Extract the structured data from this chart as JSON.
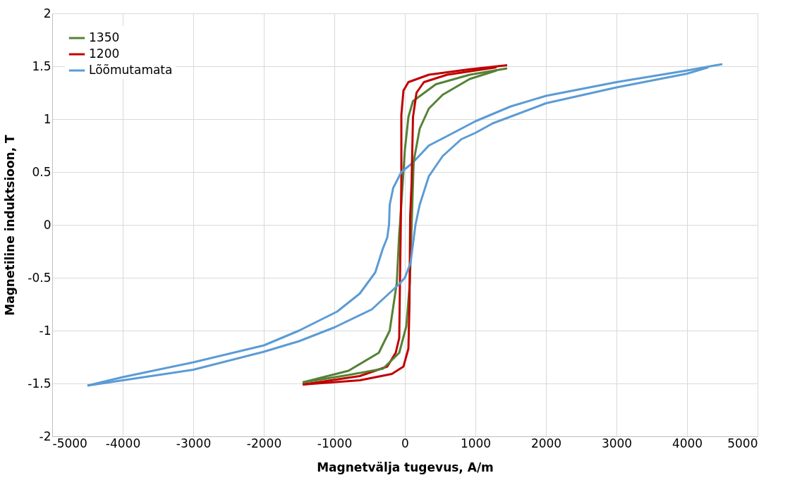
{
  "chart_data": {
    "type": "line",
    "xlabel": "Magnetvälja tugevus, A/m",
    "ylabel": "Magnetiline induktsioon, T",
    "xlim": [
      -5000,
      5000
    ],
    "xticks": [
      -5000,
      -4000,
      -3000,
      -2000,
      -1000,
      0,
      1000,
      2000,
      3000,
      4000,
      5000
    ],
    "ylim": [
      -2,
      2
    ],
    "yticks": [
      -2,
      -1.5,
      -1,
      -0.5,
      0,
      0.5,
      1,
      1.5,
      2
    ],
    "grid": true,
    "legend": "top left",
    "marker": "none",
    "line_style": "solid",
    "series": [
      {
        "name": "1350",
        "color": "#548235",
        "x": [
          1450,
          920,
          440,
          115,
          50,
          0,
          -30,
          -70,
          -80,
          -115,
          -215,
          -370,
          -800,
          -1450
        ],
        "values": [
          1.48,
          1.42,
          1.33,
          1.17,
          1.02,
          0.71,
          0.4,
          0,
          -0.08,
          -0.55,
          -1.0,
          -1.21,
          -1.38,
          -1.49
        ]
      },
      {
        "name": "1200",
        "color": "#c00000",
        "x": [
          1450,
          900,
          340,
          50,
          -20,
          -50,
          -50,
          -60,
          -70,
          -80,
          -130,
          -250,
          -640,
          -1450
        ],
        "values": [
          1.51,
          1.47,
          1.42,
          1.35,
          1.27,
          1.04,
          0.4,
          -0.1,
          -0.55,
          -1.07,
          -1.21,
          -1.34,
          -1.43,
          -1.51
        ]
      },
      {
        "name": "Lõõmutamata",
        "color": "#5b9bd5",
        "x": [
          4500,
          4000,
          3000,
          2000,
          1500,
          1000,
          600,
          340,
          100,
          -50,
          -165,
          -215,
          -225,
          -250,
          -315,
          -420,
          -640,
          -960,
          -1500,
          -2000,
          -3000,
          -4000,
          -4500
        ],
        "values": [
          1.52,
          1.46,
          1.35,
          1.22,
          1.12,
          0.98,
          0.84,
          0.75,
          0.58,
          0.5,
          0.35,
          0.19,
          0,
          -0.12,
          -0.23,
          -0.45,
          -0.65,
          -0.82,
          -1.0,
          -1.14,
          -1.3,
          -1.44,
          -1.52
        ]
      },
      {
        "color": "#548235",
        "x": [
          -1450,
          -800,
          -310,
          -80,
          20,
          70,
          100,
          125,
          210,
          340,
          535,
          920,
          1300
        ],
        "values": [
          -1.49,
          -1.42,
          -1.36,
          -1.21,
          -0.96,
          -0.55,
          0.08,
          0.6,
          0.91,
          1.1,
          1.23,
          1.38,
          1.46
        ]
      },
      {
        "color": "#c00000",
        "x": [
          -1450,
          -640,
          -185,
          -20,
          50,
          65,
          75,
          95,
          115,
          165,
          270,
          600,
          1300
        ],
        "values": [
          -1.51,
          -1.47,
          -1.41,
          -1.34,
          -1.17,
          -0.75,
          0.08,
          0.39,
          1.02,
          1.25,
          1.35,
          1.42,
          1.49
        ]
      },
      {
        "color": "#5b9bd5",
        "x": [
          -4500,
          -4000,
          -3000,
          -2000,
          -1500,
          -1000,
          -470,
          -80,
          0,
          80,
          150,
          210,
          340,
          535,
          800,
          1000,
          1245,
          2000,
          3000,
          4000,
          4300
        ],
        "values": [
          -1.52,
          -1.47,
          -1.37,
          -1.2,
          -1.1,
          -0.97,
          -0.8,
          -0.56,
          -0.5,
          -0.36,
          0,
          0.19,
          0.46,
          0.65,
          0.81,
          0.87,
          0.96,
          1.15,
          1.3,
          1.43,
          1.49
        ]
      }
    ]
  }
}
